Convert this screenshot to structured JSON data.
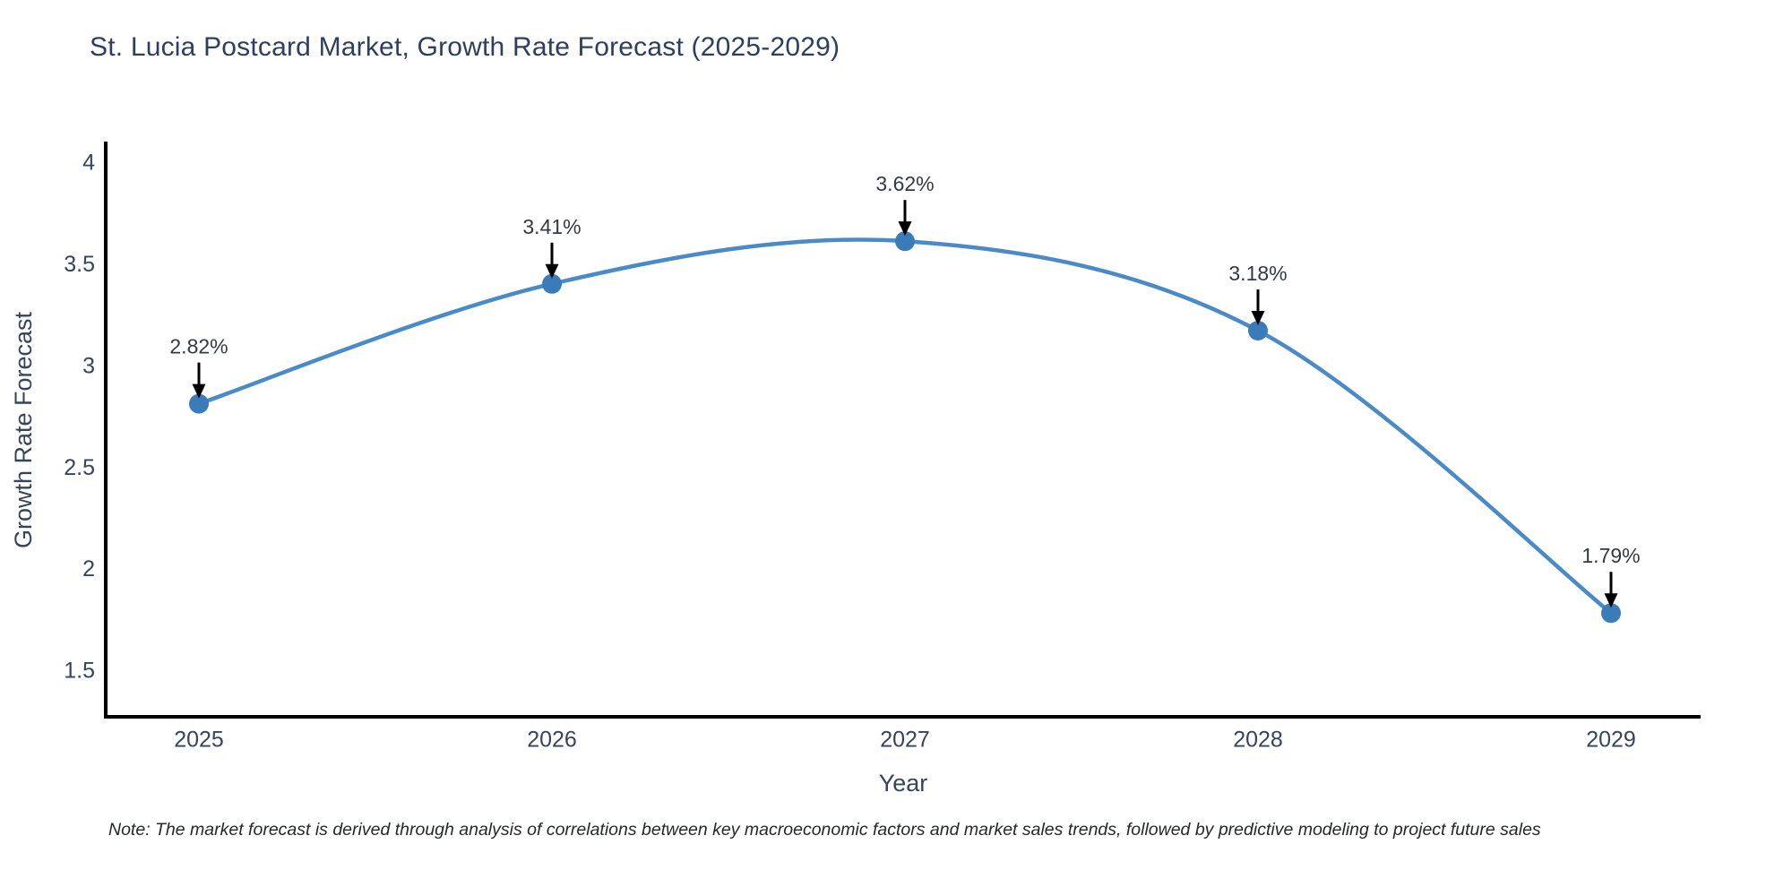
{
  "title": "St. Lucia Postcard Market, Growth Rate Forecast (2025-2029)",
  "note": "Note: The market forecast is derived through analysis of correlations between key macroeconomic factors and market sales trends, followed by predictive modeling to project future sales",
  "chart_data": {
    "type": "line",
    "title": "St. Lucia Postcard Market, Growth Rate Forecast (2025-2029)",
    "line_shape": "spline",
    "categories": [
      "2025",
      "2026",
      "2027",
      "2028",
      "2029"
    ],
    "x": [
      2025,
      2026,
      2027,
      2028,
      2029
    ],
    "values": [
      2.82,
      3.41,
      3.62,
      3.18,
      1.79
    ],
    "point_labels": [
      "2.82%",
      "3.41%",
      "3.62%",
      "3.18%",
      "1.79%"
    ],
    "xlabel": "Year",
    "ylabel": "Growth Rate Forecast",
    "y_ticks": [
      4,
      3.5,
      3,
      2.5,
      2,
      1.5
    ],
    "ylim": [
      1.28,
      4.1
    ],
    "xlim": [
      2024.74,
      2029.26
    ],
    "grid": false,
    "legend": "none",
    "colors": {
      "line": "#4a8ac6",
      "marker": "#3a7cba",
      "axis": "#000000",
      "tick_text": "#36455a",
      "axis_title_text": "#36455a",
      "title_text": "#2d3f5e",
      "annotation_text": "#333a42",
      "arrow": "#000000"
    }
  }
}
